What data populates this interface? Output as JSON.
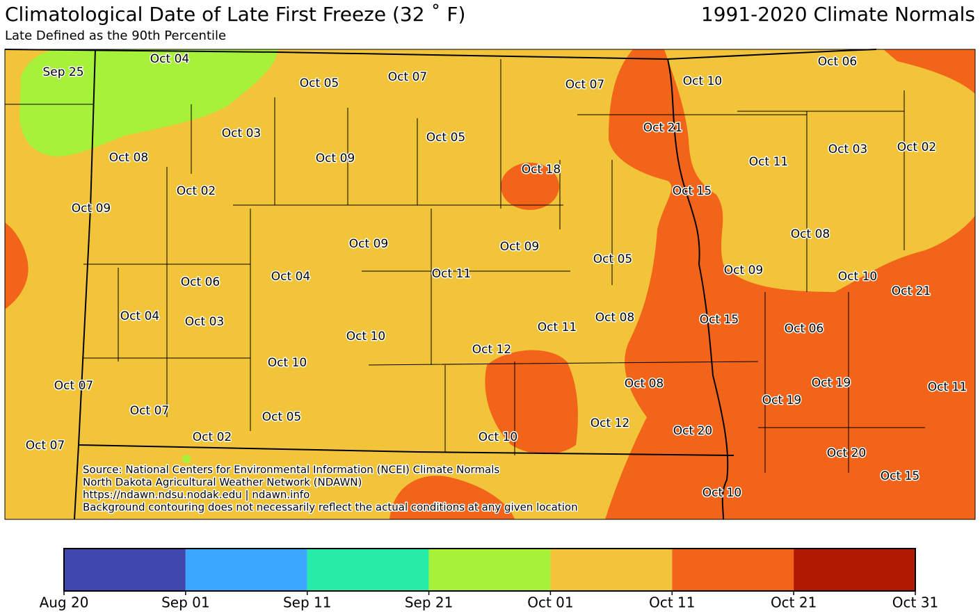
{
  "header": {
    "title": "Climatological Date of Late First Freeze (32$^\\circ$F)",
    "title_text": "Climatological Date of Late First Freeze (32 ˚ F)",
    "subtitle": "Late Defined as the 90th Percentile",
    "period": "1991-2020 Climate Normals"
  },
  "stations": [
    "Sep 25",
    "Oct 04",
    "Oct 05",
    "Oct 07",
    "Oct 07",
    "Oct 10",
    "Oct 06",
    "Oct 03",
    "Oct 05",
    "Oct 21",
    "Oct 03",
    "Oct 02",
    "Oct 08",
    "Oct 09",
    "Oct 18",
    "Oct 11",
    "Oct 02",
    "Oct 15",
    "Oct 09",
    "Oct 08",
    "Oct 09",
    "Oct 09",
    "Oct 05",
    "Oct 09",
    "Oct 04",
    "Oct 11",
    "Oct 10",
    "Oct 06",
    "Oct 21",
    "Oct 04",
    "Oct 08",
    "Oct 15",
    "Oct 03",
    "Oct 11",
    "Oct 06",
    "Oct 10",
    "Oct 12",
    "Oct 10",
    "Oct 19",
    "Oct 08",
    "Oct 07",
    "Oct 11",
    "Oct 19",
    "Oct 07",
    "Oct 05",
    "Oct 12",
    "Oct 20",
    "Oct 02",
    "Oct 10",
    "Oct 07",
    "Oct 20",
    "Oct 15",
    "Oct 10"
  ],
  "source": [
    "Source: National Centers for Environmental Information (NCEI) Climate Normals",
    "North Dakota Agricultural Weather Network (NDAWN)",
    "https://ndawn.ndsu.nodak.edu | ndawn.info",
    "Background contouring does not necessarily reflect the actual conditions at any given location"
  ],
  "colorbar": {
    "colors": [
      "#4048b0",
      "#3aa6ff",
      "#26eba6",
      "#a6f23a",
      "#f2c43a",
      "#f26419",
      "#b01a00"
    ],
    "labels": [
      "Aug 20",
      "Sep 01",
      "Sep 11",
      "Sep 21",
      "Oct 01",
      "Oct 11",
      "Oct 21",
      "Oct 31"
    ]
  }
}
